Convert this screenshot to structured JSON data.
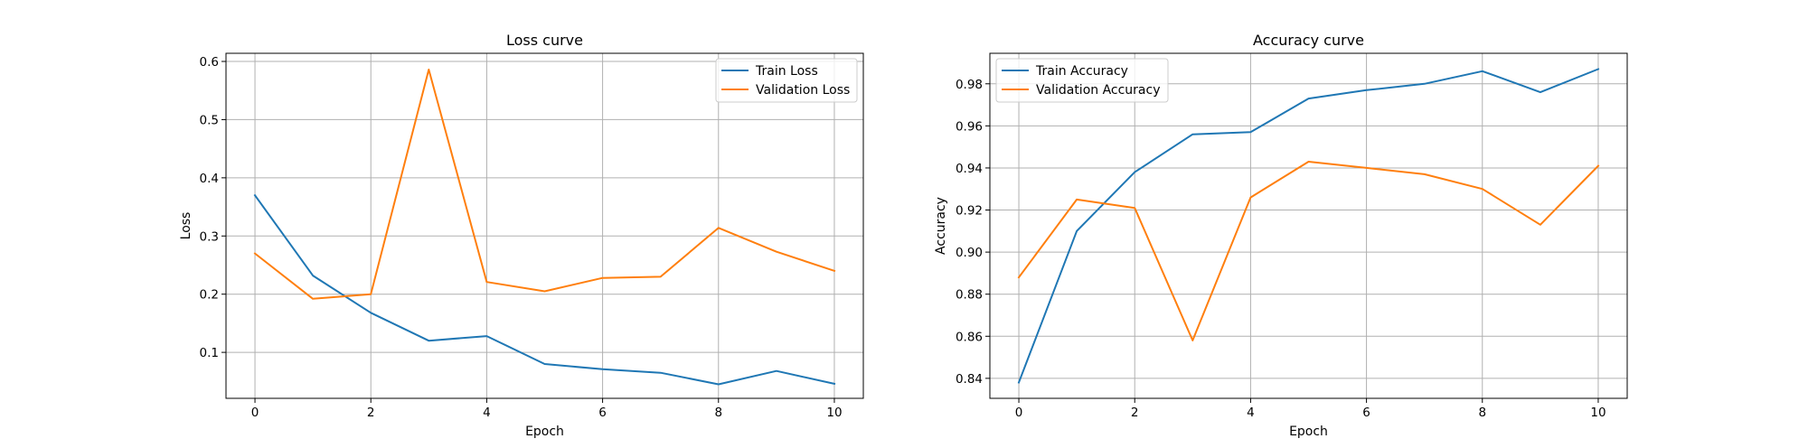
{
  "chart_data": [
    {
      "type": "line",
      "title": "Loss curve",
      "xlabel": "Epoch",
      "ylabel": "Loss",
      "xlim": [
        -0.5,
        10.5
      ],
      "ylim": [
        0.021,
        0.614
      ],
      "xticks": [
        0,
        2,
        4,
        6,
        8,
        10
      ],
      "yticks": [
        0.1,
        0.2,
        0.3,
        0.4,
        0.5,
        0.6
      ],
      "ytick_labels": [
        "0.1",
        "0.2",
        "0.3",
        "0.4",
        "0.5",
        "0.6"
      ],
      "grid": true,
      "legend_position": "top-right",
      "x": [
        0,
        1,
        2,
        3,
        4,
        5,
        6,
        7,
        8,
        9,
        10
      ],
      "series": [
        {
          "name": "Train Loss",
          "color": "#1f77b4",
          "values": [
            0.37,
            0.232,
            0.168,
            0.12,
            0.128,
            0.08,
            0.071,
            0.065,
            0.045,
            0.068,
            0.046
          ]
        },
        {
          "name": "Validation Loss",
          "color": "#ff7f0e",
          "values": [
            0.27,
            0.192,
            0.2,
            0.586,
            0.221,
            0.205,
            0.228,
            0.23,
            0.314,
            0.273,
            0.24
          ]
        }
      ]
    },
    {
      "type": "line",
      "title": "Accuracy curve",
      "xlabel": "Epoch",
      "ylabel": "Accuracy",
      "xlim": [
        -0.5,
        10.5
      ],
      "ylim": [
        0.8305,
        0.9945
      ],
      "xticks": [
        0,
        2,
        4,
        6,
        8,
        10
      ],
      "yticks": [
        0.84,
        0.86,
        0.88,
        0.9,
        0.92,
        0.94,
        0.96,
        0.98
      ],
      "ytick_labels": [
        "0.84",
        "0.86",
        "0.88",
        "0.90",
        "0.92",
        "0.94",
        "0.96",
        "0.98"
      ],
      "grid": true,
      "legend_position": "top-left",
      "x": [
        0,
        1,
        2,
        3,
        4,
        5,
        6,
        7,
        8,
        9,
        10
      ],
      "series": [
        {
          "name": "Train Accuracy",
          "color": "#1f77b4",
          "values": [
            0.838,
            0.91,
            0.938,
            0.956,
            0.957,
            0.973,
            0.977,
            0.98,
            0.986,
            0.976,
            0.987
          ]
        },
        {
          "name": "Validation Accuracy",
          "color": "#ff7f0e",
          "values": [
            0.888,
            0.925,
            0.921,
            0.858,
            0.926,
            0.943,
            0.94,
            0.937,
            0.93,
            0.913,
            0.941
          ]
        }
      ]
    }
  ]
}
